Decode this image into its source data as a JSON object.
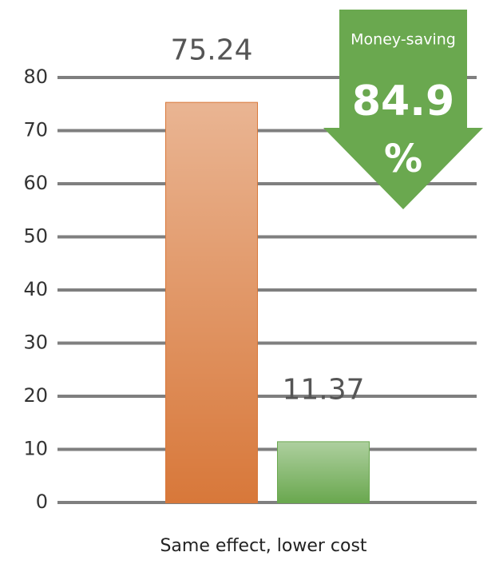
{
  "chart_data": {
    "type": "bar",
    "x_label": "Same effect, lower cost",
    "categories": [
      null,
      null
    ],
    "values": [
      75.24,
      11.37
    ],
    "colors": [
      "#d8783a",
      "#6aa84f"
    ],
    "ylim": [
      0,
      80
    ],
    "yticks": [
      0,
      10,
      20,
      30,
      40,
      50,
      60,
      70,
      80
    ],
    "grid": true,
    "annotation": {
      "title": "Money-saving",
      "value": 84.9,
      "unit": "%",
      "color": "#6aa84f"
    }
  }
}
